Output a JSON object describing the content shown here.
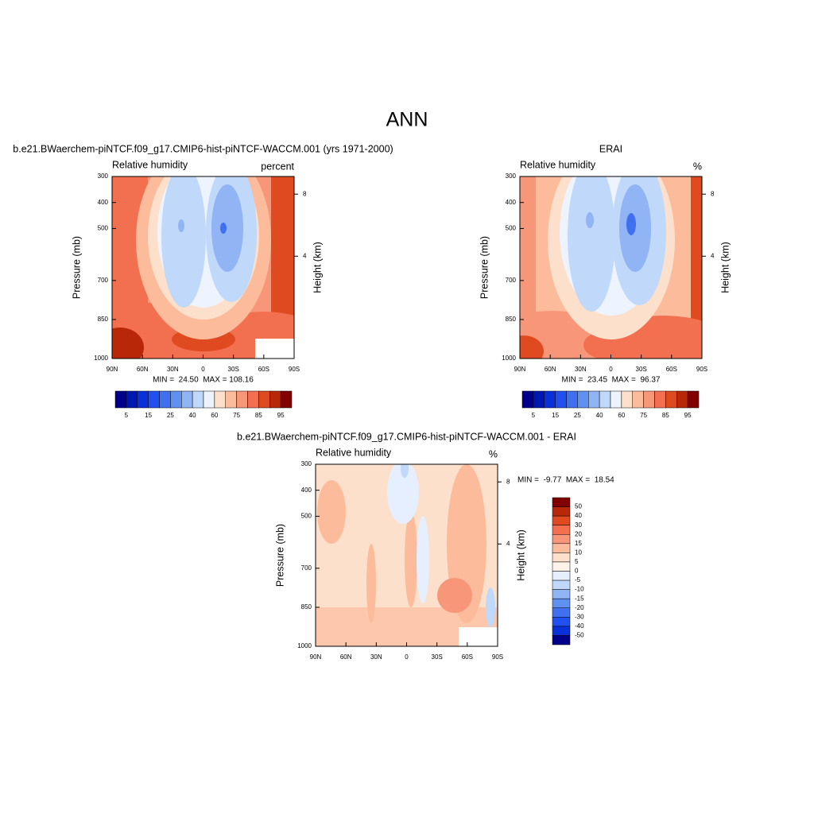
{
  "title": "ANN",
  "chart_data": [
    {
      "type": "contour",
      "title": "b.e21.BWaerchem-piNTCF.f09_g17.CMIP6-hist-piNTCF-WACCM.001 (yrs 1971-2000)",
      "left_string": "Relative humidity",
      "right_string": "percent",
      "ylabel": "Pressure (mb)",
      "y2label": "Height (km)",
      "ylim": [
        1000,
        300
      ],
      "yticks": [
        300,
        400,
        500,
        700,
        850,
        1000
      ],
      "y2ticks": [
        8,
        4
      ],
      "xlim": [
        90,
        -90
      ],
      "xticks": [
        {
          "value": 90,
          "label": "90N"
        },
        {
          "value": 60,
          "label": "60N"
        },
        {
          "value": 30,
          "label": "30N"
        },
        0,
        {
          "value": -30,
          "label": "30S"
        },
        {
          "value": -60,
          "label": "60S"
        },
        {
          "value": -90,
          "label": "90S"
        }
      ],
      "stats": "MIN =  24.50  MAX = 108.16",
      "colorbar": {
        "orientation": "horizontal",
        "labels": [
          5,
          15,
          25,
          40,
          60,
          75,
          85,
          95
        ],
        "colors": [
          "#00008a",
          "#0018b0",
          "#0a30d8",
          "#2050f0",
          "#4070f0",
          "#6090f0",
          "#90b4f4",
          "#c0d8fa",
          "#eef4ff",
          "#fde0cc",
          "#fcbc9c",
          "#f8967a",
          "#f27050",
          "#e04a20",
          "#b82808",
          "#800000"
        ]
      }
    },
    {
      "type": "contour",
      "title": "ERAI",
      "left_string": "Relative humidity",
      "right_string": "%",
      "ylabel": "Pressure (mb)",
      "y2label": "Height (km)",
      "ylim": [
        1000,
        300
      ],
      "yticks": [
        300,
        400,
        500,
        700,
        850,
        1000
      ],
      "y2ticks": [
        8,
        4
      ],
      "xlim": [
        90,
        -90
      ],
      "xticks": [
        {
          "value": 90,
          "label": "90N"
        },
        {
          "value": 60,
          "label": "60N"
        },
        {
          "value": 30,
          "label": "30N"
        },
        0,
        {
          "value": -30,
          "label": "30S"
        },
        {
          "value": -60,
          "label": "60S"
        },
        {
          "value": -90,
          "label": "90S"
        }
      ],
      "stats": "MIN =  23.45  MAX =  96.37",
      "colorbar": {
        "orientation": "horizontal",
        "labels": [
          5,
          15,
          25,
          40,
          60,
          75,
          85,
          95
        ],
        "colors": [
          "#00008a",
          "#0018b0",
          "#0a30d8",
          "#2050f0",
          "#4070f0",
          "#6090f0",
          "#90b4f4",
          "#c0d8fa",
          "#eef4ff",
          "#fde0cc",
          "#fcbc9c",
          "#f8967a",
          "#f27050",
          "#e04a20",
          "#b82808",
          "#800000"
        ]
      }
    },
    {
      "type": "contour",
      "title": "b.e21.BWaerchem-piNTCF.f09_g17.CMIP6-hist-piNTCF-WACCM.001 - ERAI",
      "left_string": "Relative humidity",
      "right_string": "%",
      "ylabel": "Pressure (mb)",
      "y2label": "Height (km)",
      "ylim": [
        1000,
        300
      ],
      "yticks": [
        300,
        400,
        500,
        700,
        850,
        1000
      ],
      "y2ticks": [
        8,
        4
      ],
      "xlim": [
        90,
        -90
      ],
      "xticks": [
        {
          "value": 90,
          "label": "90N"
        },
        {
          "value": 60,
          "label": "60N"
        },
        {
          "value": 30,
          "label": "30N"
        },
        0,
        {
          "value": -30,
          "label": "30S"
        },
        {
          "value": -60,
          "label": "60S"
        },
        {
          "value": -90,
          "label": "90S"
        }
      ],
      "stats": "MIN =  -9.77  MAX =  18.54",
      "colorbar": {
        "orientation": "vertical",
        "labels": [
          50,
          40,
          30,
          20,
          15,
          10,
          5,
          0,
          -5,
          -10,
          -15,
          -20,
          -30,
          -40,
          -50
        ],
        "colors": [
          "#800000",
          "#b82808",
          "#e04a20",
          "#f27050",
          "#f8967a",
          "#fcbc9c",
          "#fde0cc",
          "#fff2e8",
          "#e6efff",
          "#c0d8fa",
          "#90b4f4",
          "#6090f0",
          "#4070f0",
          "#2050f0",
          "#0a30d8",
          "#00008a"
        ]
      }
    }
  ]
}
